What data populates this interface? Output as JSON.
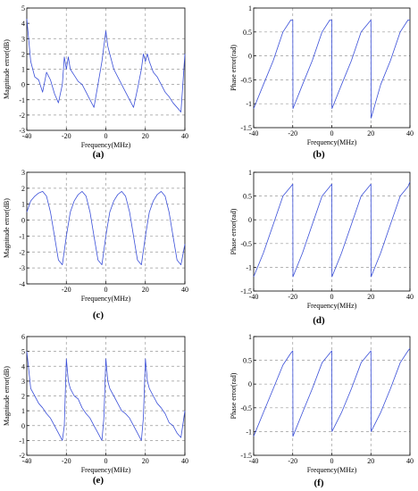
{
  "chart_data": [
    {
      "id": "a",
      "type": "line",
      "caption": "(a)",
      "xlabel": "Frequency(MHz)",
      "ylabel": "Magnitude error(dB)",
      "xlim": [
        -40,
        40
      ],
      "ylim": [
        -3,
        5
      ],
      "xticks": [
        -40,
        -20,
        0,
        20,
        40
      ],
      "yticks": [
        -3,
        -2,
        -1,
        0,
        1,
        2,
        3,
        4,
        5
      ],
      "xgrid": [
        -20,
        0,
        20
      ],
      "ygrid": [
        -2,
        -1,
        0,
        1,
        2,
        3
      ],
      "series": [
        {
          "x": [
            -40,
            -38,
            -36,
            -34,
            -32,
            -30,
            -28,
            -26,
            -24,
            -22,
            -21,
            -20,
            -19,
            -18,
            -16,
            -14,
            -12,
            -10,
            -8,
            -6,
            -4,
            -2,
            -1,
            0,
            1,
            2,
            4,
            6,
            8,
            10,
            12,
            14,
            16,
            18,
            19,
            20,
            21,
            22,
            24,
            26,
            28,
            30,
            32,
            34,
            36,
            38,
            40
          ],
          "y": [
            4.3,
            1.5,
            0.5,
            0.3,
            -0.5,
            0.8,
            0.3,
            -0.6,
            -1.2,
            0.0,
            1.8,
            1.0,
            1.8,
            1.0,
            0.6,
            0.2,
            0.0,
            -0.5,
            -1.0,
            -1.5,
            0.0,
            1.5,
            2.5,
            3.5,
            2.5,
            2.0,
            1.0,
            0.5,
            0.0,
            -0.5,
            -1.0,
            -1.5,
            -0.3,
            1.0,
            2.0,
            1.5,
            2.0,
            1.5,
            0.8,
            0.5,
            0.0,
            -0.5,
            -0.8,
            -1.2,
            -1.5,
            -1.8,
            2.0
          ]
        }
      ]
    },
    {
      "id": "b",
      "type": "line",
      "caption": "(b)",
      "xlabel": "Frequency(MHz)",
      "ylabel": "Phase error(rad)",
      "xlim": [
        -40,
        40
      ],
      "ylim": [
        -1.5,
        1
      ],
      "xticks": [
        -40,
        -20,
        0,
        20,
        40
      ],
      "yticks": [
        -1.5,
        -1,
        -0.5,
        0,
        0.5,
        1
      ],
      "xgrid": [
        -20,
        0,
        20
      ],
      "ygrid": [
        -1,
        -0.5,
        0,
        0.5
      ],
      "series": [
        {
          "x": [
            -40,
            -35,
            -30,
            -25,
            -21,
            -20,
            -19.9,
            -15,
            -10,
            -5,
            -1,
            0,
            0.1,
            5,
            10,
            15,
            19,
            20,
            20.1,
            25,
            30,
            35,
            39,
            40
          ],
          "y": [
            -1.1,
            -0.6,
            -0.1,
            0.5,
            0.75,
            0.75,
            -1.1,
            -0.6,
            -0.1,
            0.5,
            0.75,
            0.75,
            -1.1,
            -0.6,
            -0.1,
            0.5,
            0.7,
            0.75,
            -1.3,
            -0.6,
            -0.1,
            0.5,
            0.75,
            0.75
          ]
        }
      ]
    },
    {
      "id": "c",
      "type": "line",
      "caption": "(c)",
      "xlabel": "Frequency(MHz)",
      "ylabel": "Magnitude error(dB)",
      "xlim": [
        -40,
        40
      ],
      "ylim": [
        -4,
        3
      ],
      "xticks": [
        -20,
        0,
        20,
        40
      ],
      "yticks": [
        -4,
        -3,
        -2,
        -1,
        0,
        1,
        2,
        3
      ],
      "xgrid": [
        -20,
        0,
        20
      ],
      "ygrid": [
        -3,
        -2,
        -1,
        0,
        1,
        2
      ],
      "series": [
        {
          "x": [
            -40,
            -38,
            -36,
            -34,
            -32,
            -30,
            -28,
            -26,
            -24,
            -22,
            -20,
            -18,
            -16,
            -14,
            -12,
            -10,
            -8,
            -6,
            -4,
            -2,
            0,
            2,
            4,
            6,
            8,
            10,
            12,
            14,
            16,
            18,
            20,
            22,
            24,
            26,
            28,
            30,
            32,
            34,
            36,
            38,
            40
          ],
          "y": [
            0.5,
            1.2,
            1.5,
            1.7,
            1.8,
            1.5,
            0.5,
            -1.0,
            -2.5,
            -2.8,
            -1.0,
            0.5,
            1.2,
            1.6,
            1.8,
            1.5,
            0.5,
            -1.0,
            -2.5,
            -2.8,
            -1.0,
            0.5,
            1.2,
            1.6,
            1.8,
            1.5,
            0.5,
            -1.0,
            -2.5,
            -2.8,
            -1.0,
            0.5,
            1.2,
            1.6,
            1.8,
            1.5,
            0.5,
            -1.0,
            -2.5,
            -2.8,
            -1.5
          ]
        }
      ]
    },
    {
      "id": "d",
      "type": "line",
      "caption": "(d)",
      "xlabel": "Frequency(MHz)",
      "ylabel": "Phase error(rad)",
      "xlim": [
        -40,
        40
      ],
      "ylim": [
        -1.5,
        1
      ],
      "xticks": [
        -40,
        -20,
        0,
        20,
        40
      ],
      "yticks": [
        -1.5,
        -1,
        -0.5,
        0,
        0.5,
        1
      ],
      "xgrid": [
        -20,
        0,
        20
      ],
      "ygrid": [
        -1,
        -0.5,
        0,
        0.5
      ],
      "series": [
        {
          "x": [
            -40,
            -35,
            -30,
            -25,
            -21,
            -20,
            -19.9,
            -15,
            -10,
            -5,
            -1,
            0,
            0.1,
            5,
            10,
            15,
            19,
            20,
            20.1,
            25,
            30,
            35,
            39,
            40
          ],
          "y": [
            -1.2,
            -0.7,
            -0.1,
            0.5,
            0.7,
            0.75,
            -1.2,
            -0.7,
            -0.1,
            0.5,
            0.7,
            0.75,
            -1.2,
            -0.7,
            -0.1,
            0.5,
            0.7,
            0.75,
            -1.2,
            -0.7,
            -0.1,
            0.5,
            0.7,
            0.8
          ]
        }
      ]
    },
    {
      "id": "e",
      "type": "line",
      "caption": "(e)",
      "xlabel": "Frequency(MHz)",
      "ylabel": "Magnitude error(dB)",
      "xlim": [
        -40,
        40
      ],
      "ylim": [
        -2,
        6
      ],
      "xticks": [
        -40,
        -20,
        0,
        20,
        40
      ],
      "yticks": [
        -2,
        -1,
        0,
        1,
        2,
        3,
        4,
        5,
        6
      ],
      "xgrid": [
        -20,
        0,
        20
      ],
      "ygrid": [
        -1,
        0,
        1,
        2,
        3,
        4,
        5
      ],
      "series": [
        {
          "x": [
            -40,
            -38,
            -36,
            -34,
            -32,
            -30,
            -28,
            -26,
            -24,
            -22,
            -21,
            -20,
            -19,
            -18,
            -16,
            -14,
            -12,
            -10,
            -8,
            -6,
            -4,
            -2,
            -1,
            0,
            1,
            2,
            4,
            6,
            8,
            10,
            12,
            14,
            16,
            18,
            19,
            20,
            21,
            22,
            24,
            26,
            28,
            30,
            32,
            34,
            36,
            38,
            40
          ],
          "y": [
            5.0,
            2.5,
            2.0,
            1.5,
            1.2,
            0.8,
            0.5,
            0.0,
            -0.5,
            -1.0,
            0.0,
            4.5,
            3.0,
            2.5,
            2.0,
            1.8,
            1.2,
            0.8,
            0.5,
            0.0,
            -0.5,
            -1.0,
            0.5,
            4.5,
            3.0,
            2.5,
            2.0,
            1.5,
            1.0,
            0.8,
            0.5,
            0.0,
            -0.5,
            -1.0,
            0.5,
            4.5,
            3.0,
            2.5,
            2.0,
            1.5,
            1.2,
            0.8,
            0.2,
            0.0,
            -0.5,
            -0.8,
            1.0
          ]
        }
      ]
    },
    {
      "id": "f",
      "type": "line",
      "caption": "(f)",
      "xlabel": "Frequency(MHz)",
      "ylabel": "Phase error(rad)",
      "xlim": [
        -40,
        40
      ],
      "ylim": [
        -1.5,
        1
      ],
      "xticks": [
        -40,
        -20,
        0,
        20,
        40
      ],
      "yticks": [
        -1.5,
        -1,
        -0.5,
        0,
        0.5,
        1
      ],
      "xgrid": [
        -20,
        0,
        20
      ],
      "ygrid": [
        -1,
        -0.5,
        0,
        0.5
      ],
      "series": [
        {
          "x": [
            -40,
            -35,
            -30,
            -25,
            -21,
            -20,
            -19.9,
            -15,
            -10,
            -5,
            -1,
            0,
            0.1,
            5,
            10,
            15,
            19,
            20,
            20.1,
            25,
            30,
            35,
            39,
            40
          ],
          "y": [
            -1.1,
            -0.6,
            -0.1,
            0.4,
            0.65,
            0.7,
            -1.1,
            -0.6,
            -0.1,
            0.45,
            0.65,
            0.7,
            -1.0,
            -0.6,
            -0.1,
            0.45,
            0.65,
            0.7,
            -1.0,
            -0.6,
            -0.1,
            0.45,
            0.7,
            0.75
          ]
        }
      ]
    }
  ],
  "colors": {
    "series": "#3a4fd8",
    "grid": "#9a9a9a",
    "axis": "#000000"
  }
}
